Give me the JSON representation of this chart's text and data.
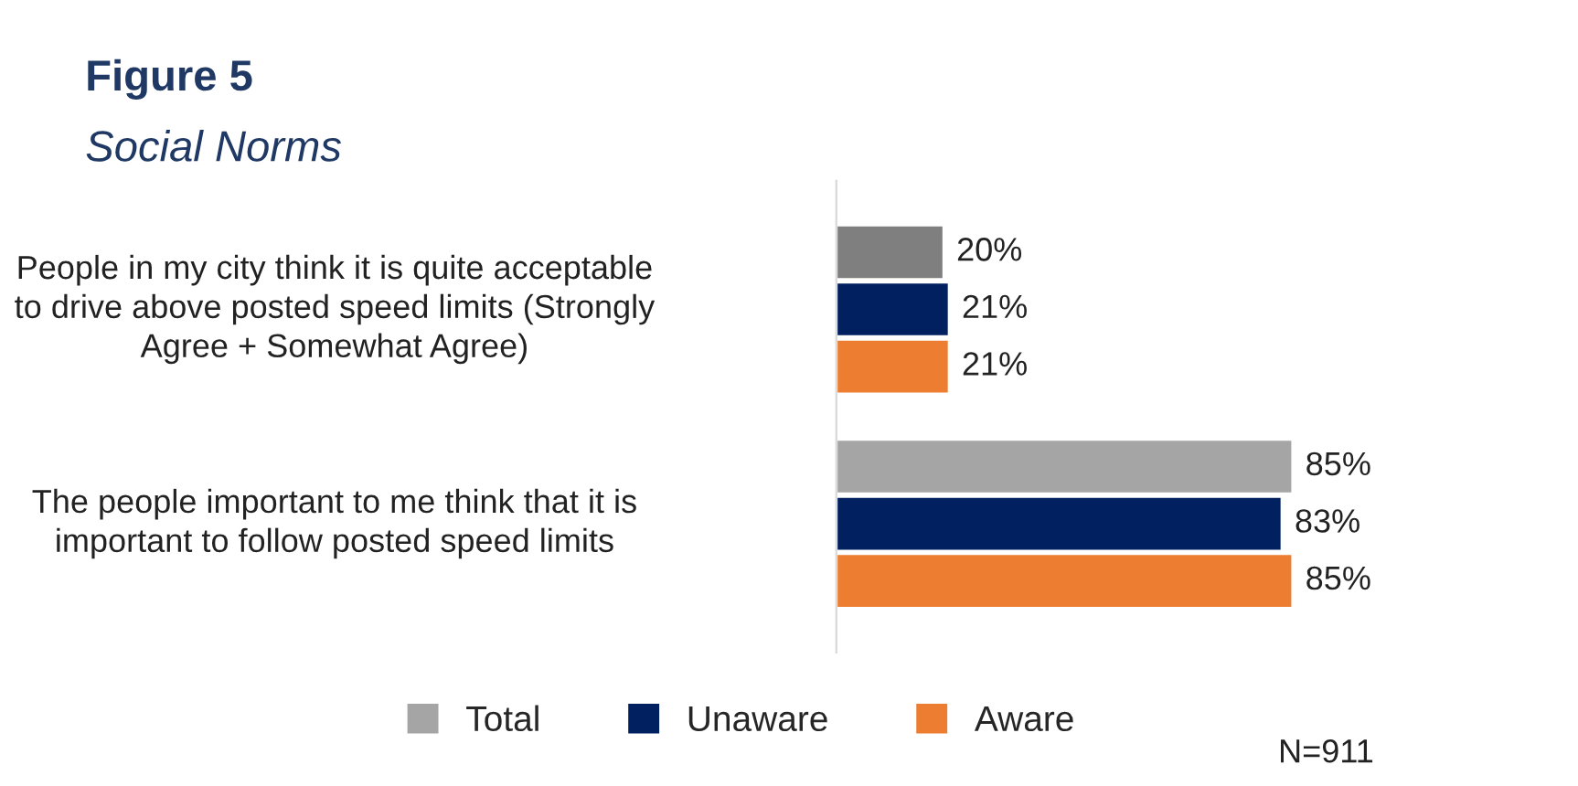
{
  "chart_data": {
    "type": "bar",
    "orientation": "horizontal",
    "title": "Figure 5",
    "subtitle": "Social Norms",
    "categories": [
      "People in my city think it is quite acceptable to drive above posted speed limits (Strongly Agree + Somewhat Agree)",
      "The people important to me think that it is important to follow posted speed limits"
    ],
    "series": [
      {
        "name": "Total",
        "color": "#a5a5a5",
        "colors": [
          "#7f7f7f",
          "#a5a5a5"
        ],
        "values": [
          20,
          85
        ],
        "value_labels": [
          "20%",
          "85%"
        ]
      },
      {
        "name": "Unaware",
        "color": "#002060",
        "values": [
          21,
          83
        ],
        "value_labels": [
          "21%",
          "83%"
        ]
      },
      {
        "name": "Aware",
        "color": "#ed7d31",
        "values": [
          21,
          85
        ],
        "value_labels": [
          "21%",
          "85%"
        ]
      }
    ],
    "tick_labels": "y",
    "legend": "bottom",
    "annotations": [
      "N=911"
    ]
  }
}
